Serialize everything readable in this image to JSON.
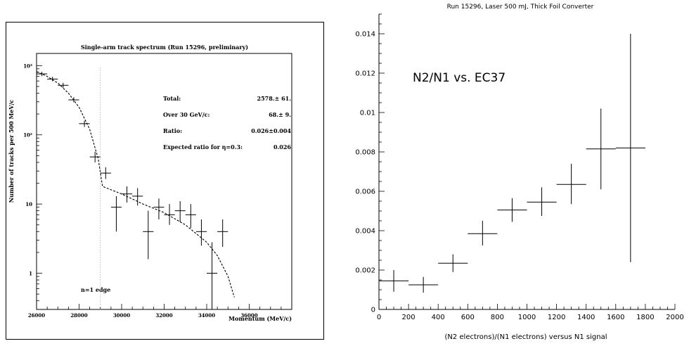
{
  "chart_data": [
    {
      "type": "scatter",
      "title": "Single-arm track spectrum (Run 15296, preliminary)",
      "xlabel": "Momentum (MeV/c)",
      "ylabel": "Number of tracks per 500 MeV/c",
      "yscale": "log",
      "xlim": [
        26000,
        38000
      ],
      "ylim": [
        0.3,
        1500
      ],
      "x_ticks": [
        {
          "v": 26000,
          "label": "26000"
        },
        {
          "v": 28000,
          "label": "28000"
        },
        {
          "v": 30000,
          "label": "30000"
        },
        {
          "v": 32000,
          "label": "32000"
        },
        {
          "v": 34000,
          "label": "34000"
        },
        {
          "v": 36000,
          "label": "36000"
        }
      ],
      "y_ticks": [
        {
          "v": 1000,
          "label": "10³"
        },
        {
          "v": 100,
          "label": "10²"
        },
        {
          "v": 10,
          "label": "10"
        },
        {
          "v": 1,
          "label": "1"
        }
      ],
      "points": [
        {
          "x": 26250,
          "y": 760,
          "ylo": 705,
          "yhi": 815
        },
        {
          "x": 26750,
          "y": 640,
          "ylo": 595,
          "yhi": 690
        },
        {
          "x": 27250,
          "y": 520,
          "ylo": 480,
          "yhi": 565
        },
        {
          "x": 27750,
          "y": 320,
          "ylo": 295,
          "yhi": 350
        },
        {
          "x": 28250,
          "y": 145,
          "ylo": 130,
          "yhi": 160
        },
        {
          "x": 28750,
          "y": 48,
          "ylo": 40,
          "yhi": 57
        },
        {
          "x": 29250,
          "y": 28,
          "ylo": 23,
          "yhi": 34
        },
        {
          "x": 29750,
          "y": 9,
          "ylo": 4,
          "yhi": 13
        },
        {
          "x": 30250,
          "y": 14,
          "ylo": 10.5,
          "yhi": 18
        },
        {
          "x": 30750,
          "y": 13,
          "ylo": 9.5,
          "yhi": 17
        },
        {
          "x": 31250,
          "y": 4,
          "ylo": 1.6,
          "yhi": 8
        },
        {
          "x": 31750,
          "y": 9,
          "ylo": 6,
          "yhi": 12
        },
        {
          "x": 32250,
          "y": 7,
          "ylo": 5,
          "yhi": 10
        },
        {
          "x": 32750,
          "y": 8,
          "ylo": 5.5,
          "yhi": 11
        },
        {
          "x": 33250,
          "y": 7,
          "ylo": 4.5,
          "yhi": 10
        },
        {
          "x": 33750,
          "y": 4,
          "ylo": 2.5,
          "yhi": 6
        },
        {
          "x": 34250,
          "y": 1,
          "ylo": 0.3,
          "yhi": 2.8
        },
        {
          "x": 34750,
          "y": 4,
          "ylo": 2.4,
          "yhi": 6
        }
      ],
      "x_halfwidth": 250,
      "fit_curve": [
        [
          26000,
          820
        ],
        [
          26500,
          700
        ],
        [
          27000,
          560
        ],
        [
          27500,
          400
        ],
        [
          28000,
          250
        ],
        [
          28500,
          120
        ],
        [
          28900,
          45
        ],
        [
          29100,
          18
        ],
        [
          30000,
          14
        ],
        [
          31000,
          10
        ],
        [
          32000,
          7.5
        ],
        [
          33000,
          5
        ],
        [
          34000,
          2.8
        ],
        [
          34500,
          1.8
        ],
        [
          35000,
          0.9
        ],
        [
          35300,
          0.45
        ]
      ],
      "edge_x": 29000,
      "annotation": "n=1 edge",
      "stats": [
        {
          "label": "Total:",
          "value": "2578.± 61."
        },
        {
          "label": "Over 30 GeV/c:",
          "value": "68.±  9."
        },
        {
          "label": "Ratio:",
          "value": "0.026±0.004"
        },
        {
          "label": "Expected ratio for η=0.3:",
          "value": "0.026"
        }
      ]
    },
    {
      "type": "scatter",
      "title": "Run 15296, Laser 500 mJ, Thick Foil Converter",
      "xlabel": "(N2 electrons)/(N1 electrons) versus N1 signal",
      "ylabel": "",
      "annotation": "N2/N1 vs. EC37",
      "xlim": [
        0,
        2000
      ],
      "ylim": [
        0,
        0.015
      ],
      "x_ticks": [
        0,
        200,
        400,
        600,
        800,
        1000,
        1200,
        1400,
        1600,
        1800,
        2000
      ],
      "y_ticks": [
        {
          "v": 0,
          "label": "0"
        },
        {
          "v": 0.002,
          "label": "0.002"
        },
        {
          "v": 0.004,
          "label": "0.004"
        },
        {
          "v": 0.006,
          "label": "0.006"
        },
        {
          "v": 0.008,
          "label": "0.008"
        },
        {
          "v": 0.01,
          "label": "0.01"
        },
        {
          "v": 0.012,
          "label": "0.012"
        },
        {
          "v": 0.014,
          "label": "0.014"
        }
      ],
      "x_halfwidth": 100,
      "points": [
        {
          "x": 100,
          "y": 0.00145,
          "ylo": 0.0009,
          "yhi": 0.002
        },
        {
          "x": 300,
          "y": 0.00125,
          "ylo": 0.00085,
          "yhi": 0.00165
        },
        {
          "x": 500,
          "y": 0.00235,
          "ylo": 0.0019,
          "yhi": 0.0028
        },
        {
          "x": 700,
          "y": 0.00385,
          "ylo": 0.00325,
          "yhi": 0.0045
        },
        {
          "x": 900,
          "y": 0.00505,
          "ylo": 0.00445,
          "yhi": 0.00565
        },
        {
          "x": 1100,
          "y": 0.00545,
          "ylo": 0.00475,
          "yhi": 0.0062
        },
        {
          "x": 1300,
          "y": 0.00635,
          "ylo": 0.00535,
          "yhi": 0.0074
        },
        {
          "x": 1500,
          "y": 0.00815,
          "ylo": 0.0061,
          "yhi": 0.0102
        },
        {
          "x": 1700,
          "y": 0.0082,
          "ylo": 0.0024,
          "yhi": 0.014
        }
      ]
    }
  ]
}
